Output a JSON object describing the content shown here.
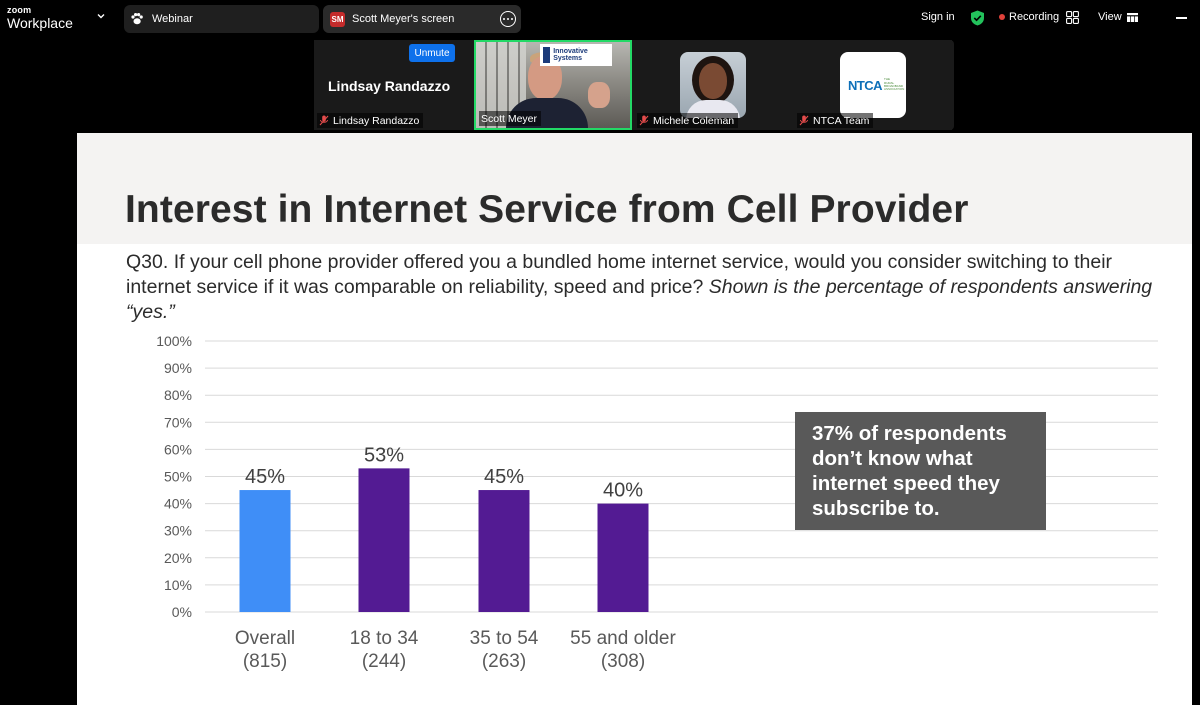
{
  "app": {
    "brand_top": "zoom",
    "brand_bottom": "Workplace"
  },
  "tabs": [
    {
      "label": "Webinar",
      "icon": "paw-icon"
    },
    {
      "label": "Scott Meyer's screen",
      "initials": "SM"
    }
  ],
  "header": {
    "signin_label": "Sign in",
    "recording_label": "Recording",
    "view_label": "View"
  },
  "participants": [
    {
      "name": "Lindsay Randazzo",
      "display_name": "Lindsay Randazzo",
      "unmute_label": "Unmute",
      "muted": true
    },
    {
      "name": "Scott Meyer",
      "logo_text": "Innovative Systems",
      "active_speaker": true
    },
    {
      "name": "Michele Coleman",
      "muted": true
    },
    {
      "name": "NTCA Team",
      "logo_text": "NTCA",
      "logo_sub": "THE RURAL BROADBAND ASSOCIATION",
      "muted": true
    }
  ],
  "slide": {
    "title": "Interest in Internet Service from Cell Provider",
    "question_plain": "Q30. If your cell phone provider offered you a bundled home internet service, would you consider switching to their internet service if it was comparable on reliability, speed and price? ",
    "question_italic": "Shown is the percentage of respondents answering “yes.”",
    "callout": "37% of respondents don’t know what internet speed they subscribe to."
  },
  "chart_data": {
    "type": "bar",
    "categories": [
      "Overall",
      "18 to 34",
      "35 to 54",
      "55 and older"
    ],
    "category_counts": [
      "(815)",
      "(244)",
      "(263)",
      "(308)"
    ],
    "values": [
      45,
      53,
      45,
      40
    ],
    "data_labels": [
      "45%",
      "53%",
      "45%",
      "40%"
    ],
    "bar_colors": [
      "#3f8ef7",
      "#531b93",
      "#531b93",
      "#531b93"
    ],
    "ylim": [
      0,
      100
    ],
    "yticks": [
      0,
      10,
      20,
      30,
      40,
      50,
      60,
      70,
      80,
      90,
      100
    ],
    "ytick_labels": [
      "0%",
      "10%",
      "20%",
      "30%",
      "40%",
      "50%",
      "60%",
      "70%",
      "80%",
      "90%",
      "100%"
    ],
    "grid": true,
    "title": "",
    "xlabel": "",
    "ylabel": ""
  }
}
